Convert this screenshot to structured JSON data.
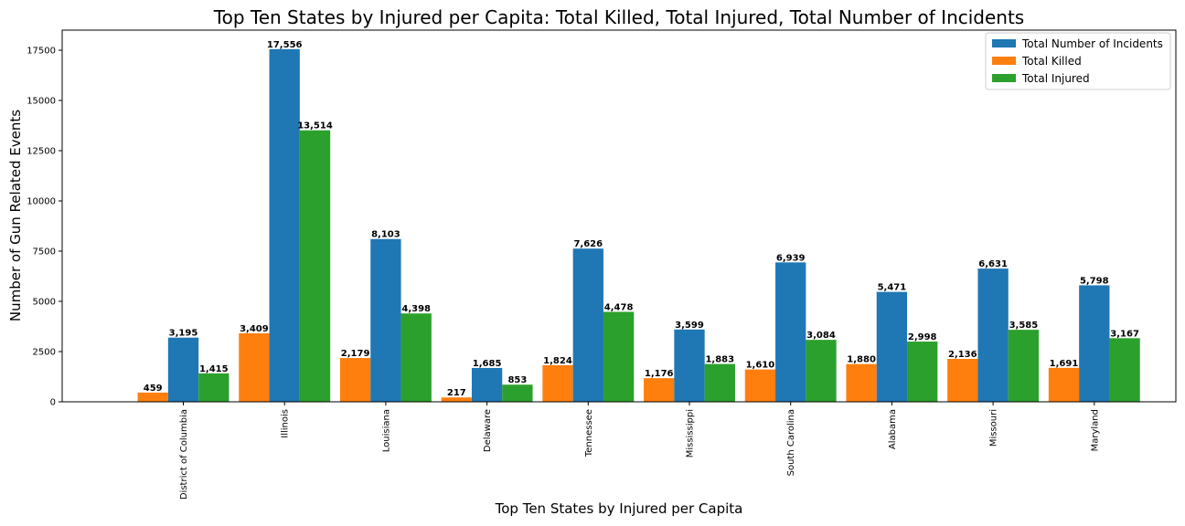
{
  "chart_data": {
    "type": "bar",
    "title": "Top Ten States by Injured per Capita: Total Killed, Total Injured, Total Number of Incidents",
    "xlabel": "Top Ten States by Injured per Capita",
    "ylabel": "Number of Gun Related Events",
    "ylim": [
      0,
      18500
    ],
    "yticks": [
      0,
      2500,
      5000,
      7500,
      10000,
      12500,
      15000,
      17500
    ],
    "grid": false,
    "legend_position": "top-right",
    "categories": [
      "District of Columbia",
      "Illinois",
      "Louisiana",
      "Delaware",
      "Tennessee",
      "Mississippi",
      "South Carolina",
      "Alabama",
      "Missouri",
      "Maryland"
    ],
    "legend_order": [
      "Total Number of Incidents",
      "Total Killed",
      "Total Injured"
    ],
    "series": [
      {
        "name": "Total Killed",
        "color": "#ff7f0e",
        "values": [
          459,
          3409,
          2179,
          217,
          1824,
          1176,
          1610,
          1880,
          2136,
          1691
        ],
        "labels": [
          "459",
          "3,409",
          "2,179",
          "217",
          "1,824",
          "1,176",
          "1,610",
          "1,880",
          "2,136",
          "1,691"
        ]
      },
      {
        "name": "Total Number of Incidents",
        "color": "#1f77b4",
        "values": [
          3195,
          17556,
          8103,
          1685,
          7626,
          3599,
          6939,
          5471,
          6631,
          5798
        ],
        "labels": [
          "3,195",
          "17,556",
          "8,103",
          "1,685",
          "7,626",
          "3,599",
          "6,939",
          "5,471",
          "6,631",
          "5,798"
        ]
      },
      {
        "name": "Total Injured",
        "color": "#2ca02c",
        "values": [
          1415,
          13514,
          4398,
          853,
          4478,
          1883,
          3084,
          2998,
          3585,
          3167
        ],
        "labels": [
          "1,415",
          "13,514",
          "4,398",
          "853",
          "4,478",
          "1,883",
          "3,084",
          "2,998",
          "3,585",
          "3,167"
        ]
      }
    ]
  }
}
